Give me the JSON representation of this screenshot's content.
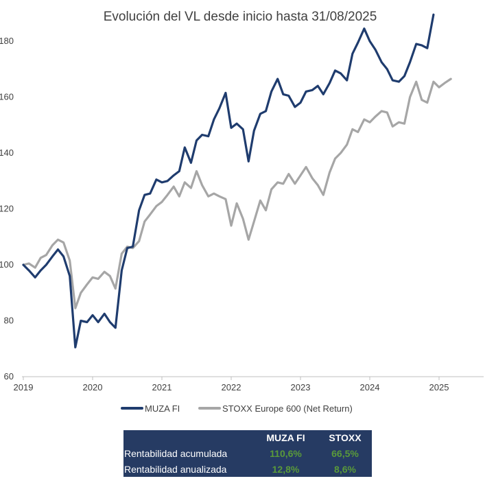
{
  "chart_data": {
    "type": "line",
    "title": "Evolución del VL desde inicio hasta 31/08/2025",
    "xlabel": "",
    "ylabel": "",
    "xlim": [
      2019,
      2025.6
    ],
    "ylim": [
      60,
      190
    ],
    "x_ticks": [
      2019,
      2020,
      2021,
      2022,
      2023,
      2024,
      2025
    ],
    "y_ticks": [
      60,
      80,
      100,
      120,
      140,
      160,
      180
    ],
    "grid": false,
    "legend_position": "bottom",
    "series": [
      {
        "name": "MUZA FI",
        "color": "#1f3c6e",
        "x": [
          2019.0,
          2019.08,
          2019.17,
          2019.25,
          2019.33,
          2019.42,
          2019.5,
          2019.58,
          2019.67,
          2019.75,
          2019.83,
          2019.92,
          2020.0,
          2020.08,
          2020.17,
          2020.25,
          2020.33,
          2020.42,
          2020.5,
          2020.58,
          2020.67,
          2020.75,
          2020.83,
          2020.92,
          2021.0,
          2021.08,
          2021.17,
          2021.25,
          2021.33,
          2021.42,
          2021.5,
          2021.58,
          2021.67,
          2021.75,
          2021.83,
          2021.92,
          2022.0,
          2022.08,
          2022.17,
          2022.25,
          2022.33,
          2022.42,
          2022.5,
          2022.58,
          2022.67,
          2022.75,
          2022.83,
          2022.92,
          2023.0,
          2023.08,
          2023.17,
          2023.25,
          2023.33,
          2023.42,
          2023.5,
          2023.58,
          2023.67,
          2023.75,
          2023.83,
          2023.92,
          2024.0,
          2024.08,
          2024.17,
          2024.25,
          2024.33,
          2024.42,
          2024.5,
          2024.58,
          2024.67,
          2024.75,
          2024.83,
          2024.92
        ],
        "values": [
          100,
          98,
          95.5,
          98,
          100,
          103,
          105.5,
          103,
          96,
          70.5,
          80,
          79.5,
          82,
          79.5,
          82.5,
          79.5,
          77.5,
          98,
          106,
          106.5,
          119.5,
          125,
          125.5,
          130.5,
          129.5,
          130,
          132,
          133.5,
          142,
          136.5,
          144.5,
          146.5,
          146,
          152,
          156,
          161.5,
          149,
          150.5,
          148.5,
          137,
          148,
          154,
          155,
          162,
          166.5,
          161,
          160.5,
          156.5,
          158,
          162,
          162.5,
          164,
          161,
          165,
          169.5,
          168.5,
          166,
          175.5,
          179.5,
          184.5,
          180,
          177,
          172.5,
          170,
          166,
          165.5,
          167.5,
          172.5,
          179,
          178.5,
          177.5,
          189.5
        ]
      },
      {
        "name": "STOXX Europe 600 (Net Return)",
        "color": "#a6a6a6",
        "x": [
          2019.0,
          2019.08,
          2019.17,
          2019.25,
          2019.33,
          2019.42,
          2019.5,
          2019.58,
          2019.67,
          2019.75,
          2019.83,
          2019.92,
          2020.0,
          2020.08,
          2020.17,
          2020.25,
          2020.33,
          2020.42,
          2020.5,
          2020.58,
          2020.67,
          2020.75,
          2020.83,
          2020.92,
          2021.0,
          2021.08,
          2021.17,
          2021.25,
          2021.33,
          2021.42,
          2021.5,
          2021.58,
          2021.67,
          2021.75,
          2021.83,
          2021.92,
          2022.0,
          2022.08,
          2022.17,
          2022.25,
          2022.33,
          2022.42,
          2022.5,
          2022.58,
          2022.67,
          2022.75,
          2022.83,
          2022.92,
          2023.0,
          2023.08,
          2023.17,
          2023.25,
          2023.33,
          2023.42,
          2023.5,
          2023.58,
          2023.67,
          2023.75,
          2023.83,
          2023.92,
          2024.0,
          2024.08,
          2024.17,
          2024.25,
          2024.33,
          2024.42,
          2024.5,
          2024.58,
          2024.67,
          2024.75,
          2024.83,
          2024.92,
          2025.0,
          2025.08,
          2025.17
        ],
        "values": [
          100,
          100.5,
          99,
          102.5,
          103.5,
          107,
          109,
          108,
          101.5,
          84.5,
          90,
          93,
          95.5,
          95,
          97.5,
          96,
          91.5,
          104,
          106.5,
          106,
          108.5,
          115.5,
          118,
          121,
          122.5,
          125,
          128,
          124.5,
          129.5,
          127.5,
          133.5,
          128.5,
          124.5,
          125.5,
          124.5,
          123.5,
          114,
          122,
          116.5,
          109,
          115.5,
          123,
          119.5,
          127,
          129.5,
          129,
          132.5,
          129,
          132,
          135,
          131,
          128.5,
          125,
          133,
          138,
          140,
          143,
          148.5,
          147.5,
          152,
          151,
          153,
          155,
          154.5,
          149.5,
          151,
          150.5,
          160,
          165.5,
          159,
          158,
          165.5,
          163.5,
          165,
          166.5
        ]
      }
    ]
  },
  "table": {
    "headers": [
      "",
      "MUZA FI",
      "STOXX"
    ],
    "rows": [
      {
        "label": "Rentabilidad acumulada",
        "muza": "110,6%",
        "stoxx": "66,5%"
      },
      {
        "label": "Rentabilidad anualizada",
        "muza": "12,8%",
        "stoxx": "8,6%"
      }
    ]
  }
}
